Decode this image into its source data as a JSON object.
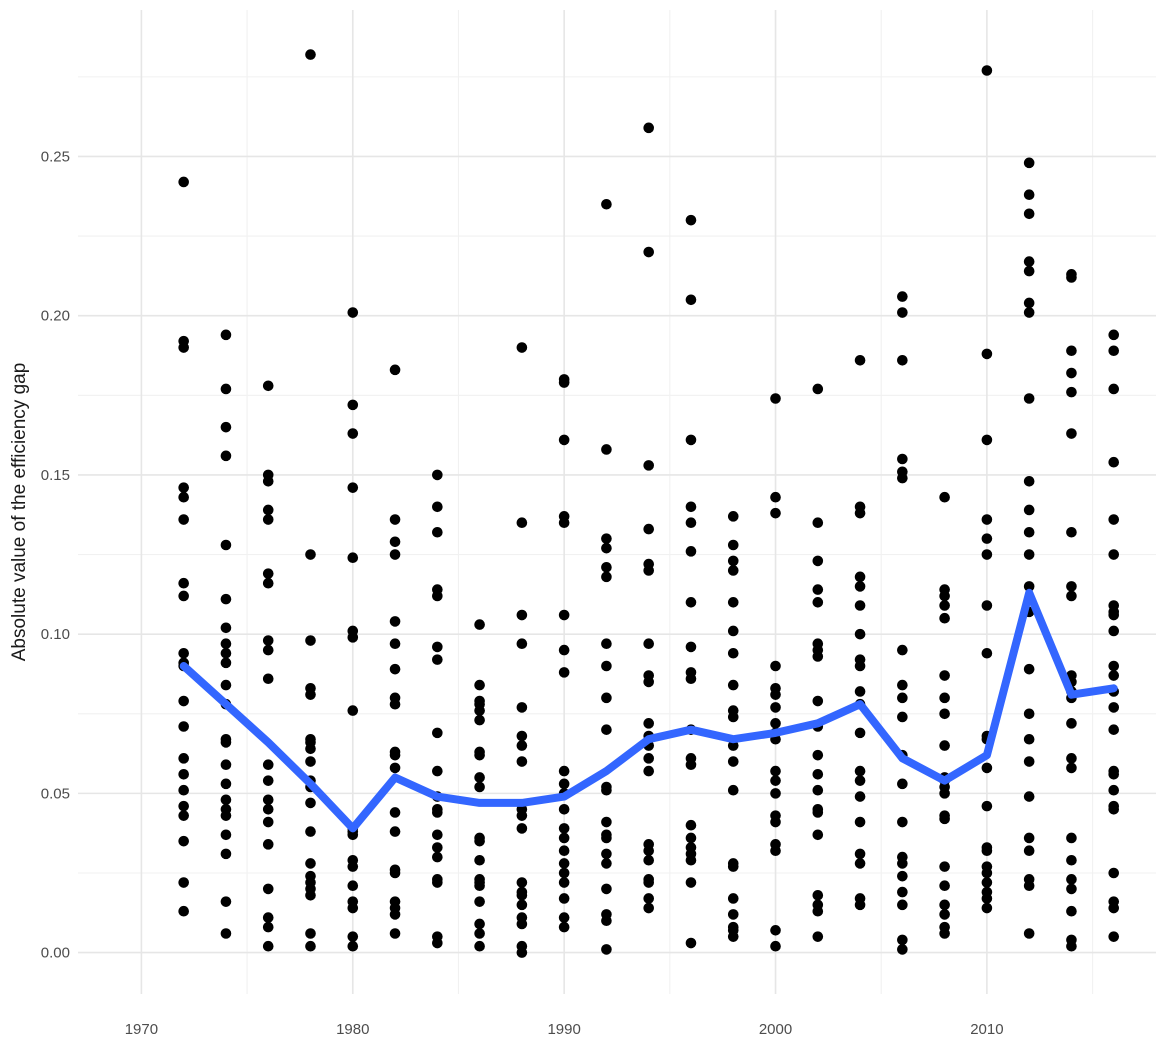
{
  "chart_data": {
    "type": "scatter",
    "title": "",
    "xlabel": "",
    "ylabel": "Absolute value of the efficiency gap",
    "xlim": [
      1967,
      2018
    ],
    "ylim": [
      -0.013,
      0.296
    ],
    "x_ticks": [
      1970,
      1980,
      1990,
      2000,
      2010
    ],
    "x_tick_labels": [
      "1970",
      "1980",
      "1990",
      "2000",
      "2010"
    ],
    "y_ticks": [
      0.0,
      0.05,
      0.1,
      0.15,
      0.2,
      0.25
    ],
    "y_tick_labels": [
      "0.00",
      "0.05",
      "0.10",
      "0.15",
      "0.20",
      "0.25"
    ],
    "grid": true,
    "legend": "none",
    "colors": {
      "points": "#000000",
      "trend": "#3366ff",
      "grid": "#ebebeb"
    },
    "series": [
      {
        "type": "scatter",
        "points": [
          {
            "year": 1972,
            "values": [
              0.242,
              0.192,
              0.19,
              0.146,
              0.143,
              0.136,
              0.116,
              0.112,
              0.094,
              0.091,
              0.09,
              0.079,
              0.071,
              0.061,
              0.056,
              0.051,
              0.046,
              0.043,
              0.035,
              0.022,
              0.013
            ]
          },
          {
            "year": 1974,
            "values": [
              0.194,
              0.177,
              0.165,
              0.156,
              0.128,
              0.111,
              0.102,
              0.097,
              0.094,
              0.091,
              0.084,
              0.078,
              0.067,
              0.066,
              0.059,
              0.053,
              0.048,
              0.045,
              0.043,
              0.037,
              0.031,
              0.016,
              0.006
            ]
          },
          {
            "year": 1976,
            "values": [
              0.178,
              0.15,
              0.148,
              0.139,
              0.136,
              0.119,
              0.116,
              0.098,
              0.095,
              0.086,
              0.059,
              0.054,
              0.048,
              0.045,
              0.041,
              0.034,
              0.02,
              0.011,
              0.008,
              0.002
            ]
          },
          {
            "year": 1978,
            "values": [
              0.282,
              0.125,
              0.098,
              0.083,
              0.081,
              0.067,
              0.066,
              0.064,
              0.06,
              0.054,
              0.052,
              0.047,
              0.038,
              0.028,
              0.024,
              0.022,
              0.02,
              0.018,
              0.006,
              0.002
            ]
          },
          {
            "year": 1980,
            "values": [
              0.201,
              0.172,
              0.163,
              0.146,
              0.124,
              0.101,
              0.099,
              0.076,
              0.039,
              0.038,
              0.037,
              0.029,
              0.027,
              0.021,
              0.016,
              0.014,
              0.005,
              0.002
            ]
          },
          {
            "year": 1982,
            "values": [
              0.183,
              0.136,
              0.129,
              0.125,
              0.104,
              0.097,
              0.089,
              0.08,
              0.078,
              0.063,
              0.062,
              0.058,
              0.044,
              0.038,
              0.026,
              0.025,
              0.016,
              0.014,
              0.012,
              0.006
            ]
          },
          {
            "year": 1984,
            "values": [
              0.15,
              0.14,
              0.132,
              0.114,
              0.112,
              0.096,
              0.092,
              0.069,
              0.057,
              0.049,
              0.045,
              0.044,
              0.037,
              0.033,
              0.03,
              0.023,
              0.022,
              0.005,
              0.003
            ]
          },
          {
            "year": 1986,
            "values": [
              0.103,
              0.084,
              0.079,
              0.078,
              0.076,
              0.073,
              0.063,
              0.062,
              0.055,
              0.052,
              0.036,
              0.035,
              0.029,
              0.023,
              0.022,
              0.021,
              0.016,
              0.009,
              0.006,
              0.002
            ]
          },
          {
            "year": 1988,
            "values": [
              0.19,
              0.135,
              0.106,
              0.097,
              0.077,
              0.068,
              0.065,
              0.06,
              0.045,
              0.043,
              0.039,
              0.022,
              0.019,
              0.018,
              0.015,
              0.011,
              0.009,
              0.002,
              0.0
            ]
          },
          {
            "year": 1990,
            "values": [
              0.18,
              0.179,
              0.161,
              0.137,
              0.135,
              0.106,
              0.095,
              0.088,
              0.057,
              0.053,
              0.05,
              0.045,
              0.039,
              0.036,
              0.032,
              0.028,
              0.025,
              0.022,
              0.017,
              0.011,
              0.008
            ]
          },
          {
            "year": 1992,
            "values": [
              0.235,
              0.158,
              0.13,
              0.127,
              0.121,
              0.118,
              0.097,
              0.09,
              0.08,
              0.07,
              0.052,
              0.051,
              0.041,
              0.037,
              0.036,
              0.031,
              0.028,
              0.02,
              0.012,
              0.01,
              0.001
            ]
          },
          {
            "year": 1994,
            "values": [
              0.259,
              0.22,
              0.153,
              0.133,
              0.122,
              0.12,
              0.097,
              0.087,
              0.085,
              0.072,
              0.068,
              0.065,
              0.061,
              0.057,
              0.034,
              0.032,
              0.029,
              0.023,
              0.022,
              0.017,
              0.014
            ]
          },
          {
            "year": 1996,
            "values": [
              0.23,
              0.205,
              0.161,
              0.14,
              0.135,
              0.126,
              0.11,
              0.096,
              0.088,
              0.086,
              0.07,
              0.061,
              0.059,
              0.04,
              0.036,
              0.033,
              0.031,
              0.029,
              0.022,
              0.003
            ]
          },
          {
            "year": 1998,
            "values": [
              0.137,
              0.128,
              0.123,
              0.12,
              0.11,
              0.101,
              0.094,
              0.084,
              0.076,
              0.074,
              0.065,
              0.06,
              0.051,
              0.028,
              0.027,
              0.017,
              0.012,
              0.008,
              0.007,
              0.005
            ]
          },
          {
            "year": 2000,
            "values": [
              0.174,
              0.143,
              0.138,
              0.09,
              0.083,
              0.081,
              0.077,
              0.072,
              0.069,
              0.067,
              0.057,
              0.054,
              0.05,
              0.043,
              0.041,
              0.034,
              0.032,
              0.007,
              0.002
            ]
          },
          {
            "year": 2002,
            "values": [
              0.177,
              0.135,
              0.123,
              0.114,
              0.11,
              0.097,
              0.095,
              0.093,
              0.079,
              0.071,
              0.062,
              0.056,
              0.051,
              0.045,
              0.044,
              0.037,
              0.018,
              0.015,
              0.013,
              0.005
            ]
          },
          {
            "year": 2004,
            "values": [
              0.186,
              0.14,
              0.138,
              0.118,
              0.115,
              0.109,
              0.1,
              0.092,
              0.09,
              0.082,
              0.078,
              0.069,
              0.057,
              0.054,
              0.049,
              0.041,
              0.031,
              0.028,
              0.017,
              0.015
            ]
          },
          {
            "year": 2006,
            "values": [
              0.206,
              0.201,
              0.186,
              0.155,
              0.151,
              0.149,
              0.095,
              0.084,
              0.08,
              0.074,
              0.062,
              0.053,
              0.041,
              0.03,
              0.028,
              0.024,
              0.019,
              0.015,
              0.004,
              0.001
            ]
          },
          {
            "year": 2008,
            "values": [
              0.143,
              0.114,
              0.112,
              0.109,
              0.105,
              0.087,
              0.08,
              0.075,
              0.065,
              0.055,
              0.054,
              0.052,
              0.05,
              0.043,
              0.042,
              0.027,
              0.021,
              0.015,
              0.012,
              0.008,
              0.006
            ]
          },
          {
            "year": 2010,
            "values": [
              0.277,
              0.188,
              0.161,
              0.136,
              0.13,
              0.125,
              0.109,
              0.094,
              0.068,
              0.067,
              0.058,
              0.046,
              0.033,
              0.032,
              0.027,
              0.025,
              0.022,
              0.019,
              0.017,
              0.014
            ]
          },
          {
            "year": 2012,
            "values": [
              0.248,
              0.238,
              0.232,
              0.217,
              0.214,
              0.204,
              0.201,
              0.174,
              0.148,
              0.139,
              0.132,
              0.125,
              0.115,
              0.107,
              0.089,
              0.075,
              0.067,
              0.06,
              0.049,
              0.036,
              0.032,
              0.023,
              0.021,
              0.006
            ]
          },
          {
            "year": 2014,
            "values": [
              0.213,
              0.212,
              0.189,
              0.182,
              0.176,
              0.163,
              0.132,
              0.115,
              0.112,
              0.087,
              0.085,
              0.082,
              0.08,
              0.072,
              0.061,
              0.058,
              0.036,
              0.029,
              0.023,
              0.02,
              0.013,
              0.004,
              0.002
            ]
          },
          {
            "year": 2016,
            "values": [
              0.194,
              0.189,
              0.177,
              0.154,
              0.136,
              0.125,
              0.109,
              0.107,
              0.106,
              0.101,
              0.09,
              0.087,
              0.082,
              0.077,
              0.07,
              0.057,
              0.056,
              0.051,
              0.046,
              0.045,
              0.025,
              0.016,
              0.014,
              0.005
            ]
          }
        ]
      },
      {
        "type": "line",
        "x": [
          1972,
          1974,
          1976,
          1978,
          1980,
          1982,
          1984,
          1986,
          1988,
          1990,
          1992,
          1994,
          1996,
          1998,
          2000,
          2002,
          2004,
          2006,
          2008,
          2010,
          2012,
          2014,
          2016
        ],
        "y": [
          0.09,
          0.078,
          0.066,
          0.053,
          0.039,
          0.055,
          0.049,
          0.047,
          0.047,
          0.049,
          0.057,
          0.067,
          0.07,
          0.067,
          0.069,
          0.072,
          0.078,
          0.061,
          0.054,
          0.062,
          0.113,
          0.081,
          0.083
        ]
      }
    ]
  }
}
